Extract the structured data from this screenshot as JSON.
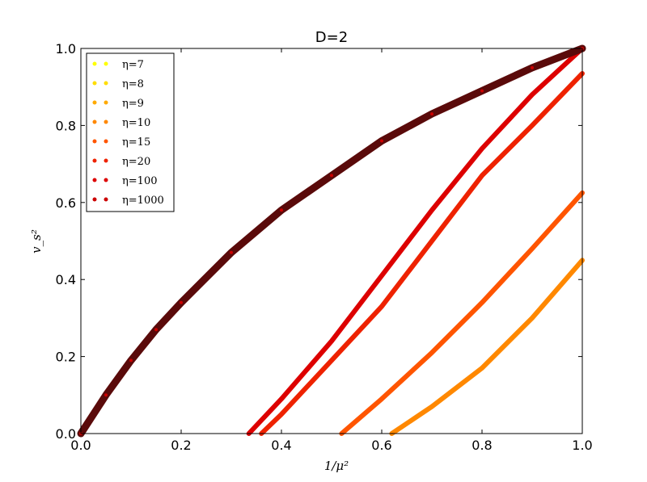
{
  "chart_data": {
    "type": "scatter",
    "title": "D=2",
    "xlabel": "1/μ²",
    "ylabel": "v_s²",
    "xlim": [
      0.0,
      1.0
    ],
    "ylim": [
      0.0,
      1.0
    ],
    "xticks": [
      "0.0",
      "0.2",
      "0.4",
      "0.6",
      "0.8",
      "1.0"
    ],
    "yticks": [
      "0.0",
      "0.2",
      "0.4",
      "0.6",
      "0.8",
      "1.0"
    ],
    "legend_position": "top-left",
    "grid": false,
    "series": [
      {
        "name": "η=7",
        "color": "#ffff00",
        "x": [],
        "y": []
      },
      {
        "name": "η=8",
        "color": "#ffdd00",
        "x": [],
        "y": []
      },
      {
        "name": "η=9",
        "color": "#ffaa00",
        "x": [],
        "y": []
      },
      {
        "name": "η=10",
        "color": "#ff8800",
        "x": [
          0.62,
          0.7,
          0.8,
          0.9,
          1.0
        ],
        "y": [
          0.0,
          0.07,
          0.17,
          0.3,
          0.45
        ]
      },
      {
        "name": "η=15",
        "color": "#ff5500",
        "x": [
          0.52,
          0.6,
          0.7,
          0.8,
          0.9,
          1.0
        ],
        "y": [
          0.0,
          0.09,
          0.21,
          0.34,
          0.48,
          0.625
        ]
      },
      {
        "name": "η=20",
        "color": "#ee2200",
        "x": [
          0.36,
          0.4,
          0.5,
          0.6,
          0.7,
          0.8,
          0.9,
          1.0
        ],
        "y": [
          0.0,
          0.05,
          0.19,
          0.33,
          0.5,
          0.67,
          0.8,
          0.935
        ]
      },
      {
        "name": "η=100",
        "color": "#dd0000",
        "x": [
          0.335,
          0.4,
          0.5,
          0.6,
          0.7,
          0.8,
          0.9,
          1.0
        ],
        "y": [
          0.0,
          0.09,
          0.24,
          0.41,
          0.58,
          0.74,
          0.88,
          1.0
        ]
      },
      {
        "name": "η=1000",
        "color": "#cc0000",
        "x": [
          0.0,
          0.05,
          0.1,
          0.15,
          0.2,
          0.3,
          0.4,
          0.5,
          0.6,
          0.7,
          0.8,
          0.9,
          1.0
        ],
        "y": [
          0.0,
          0.1,
          0.19,
          0.27,
          0.34,
          0.47,
          0.58,
          0.67,
          0.76,
          0.83,
          0.89,
          0.95,
          1.0
        ]
      }
    ]
  }
}
